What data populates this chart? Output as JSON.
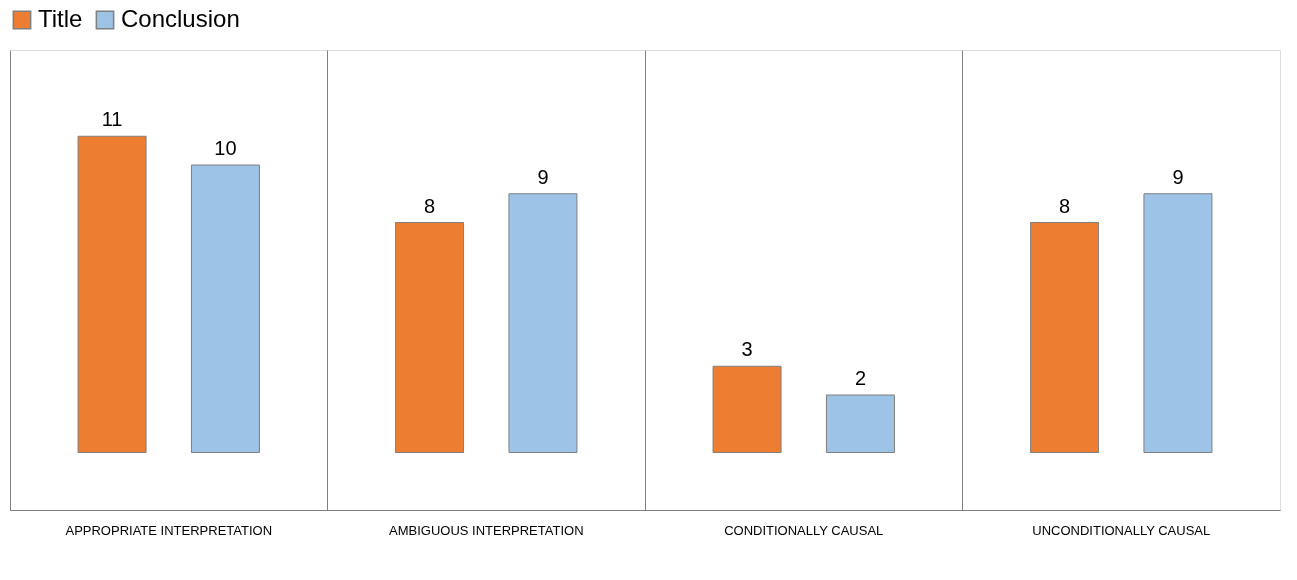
{
  "chart_data": {
    "type": "bar",
    "categories": [
      "APPROPRIATE INTERPRETATION",
      "AMBIGUOUS INTERPRETATION",
      "CONDITIONALLY CAUSAL",
      "UNCONDITIONALLY CAUSAL"
    ],
    "series": [
      {
        "name": "Title",
        "color": "#ed7d31",
        "values": [
          11,
          8,
          3,
          8
        ]
      },
      {
        "name": "Conclusion",
        "color": "#9dc3e6",
        "values": [
          10,
          9,
          2,
          9
        ]
      }
    ],
    "data_labels": true,
    "legend": "top",
    "grid": "x"
  }
}
